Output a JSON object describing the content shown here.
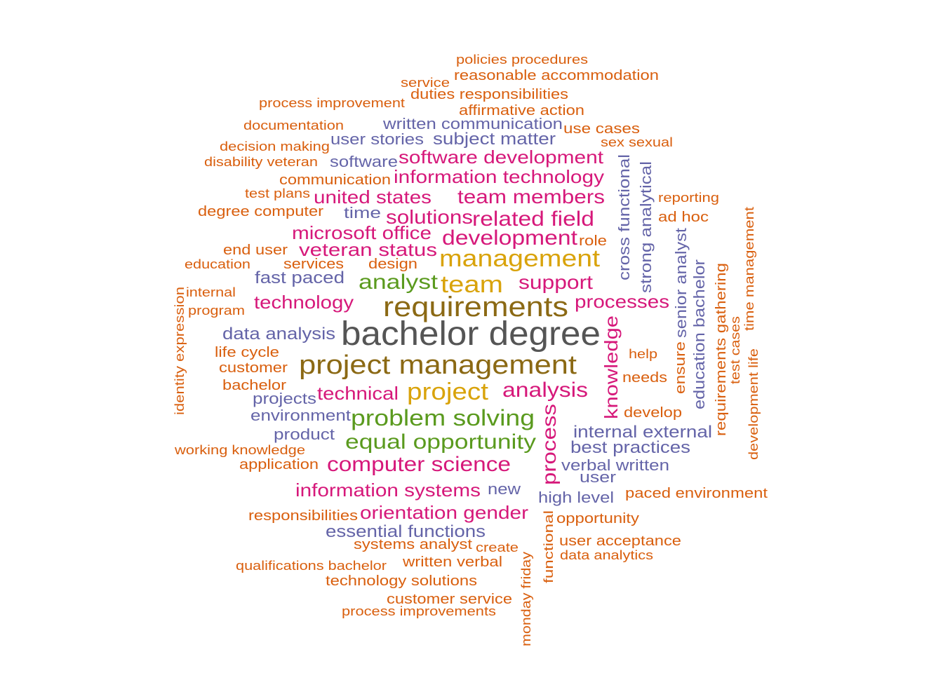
{
  "palette": {
    "dark_gray": "#555555",
    "brown": "#8B6914",
    "gold": "#D9A30B",
    "green": "#5A9A1E",
    "magenta": "#D6187A",
    "purple": "#6464A8",
    "orange": "#D95F0E"
  },
  "words": [
    {
      "text": "bachelor degree",
      "color": "dark_gray",
      "rank": 1
    },
    {
      "text": "requirements",
      "color": "brown",
      "rank": 2
    },
    {
      "text": "project management",
      "color": "brown",
      "rank": 3
    },
    {
      "text": "management",
      "color": "gold",
      "rank": 4
    },
    {
      "text": "team",
      "color": "gold",
      "rank": 5
    },
    {
      "text": "project",
      "color": "gold",
      "rank": 6
    },
    {
      "text": "analyst",
      "color": "green",
      "rank": 7
    },
    {
      "text": "problem solving",
      "color": "green",
      "rank": 8
    },
    {
      "text": "equal opportunity",
      "color": "green",
      "rank": 9
    },
    {
      "text": "development",
      "color": "magenta",
      "rank": 10
    },
    {
      "text": "related field",
      "color": "magenta",
      "rank": 11
    },
    {
      "text": "analysis",
      "color": "magenta",
      "rank": 12
    },
    {
      "text": "computer science",
      "color": "magenta",
      "rank": 13
    },
    {
      "text": "knowledge",
      "color": "magenta",
      "rank": 14
    },
    {
      "text": "process",
      "color": "magenta",
      "rank": 15
    },
    {
      "text": "support",
      "color": "magenta",
      "rank": 16
    },
    {
      "text": "processes",
      "color": "magenta",
      "rank": 17
    },
    {
      "text": "technology",
      "color": "magenta",
      "rank": 18
    },
    {
      "text": "technical",
      "color": "magenta",
      "rank": 19
    },
    {
      "text": "solutions",
      "color": "magenta",
      "rank": 20
    },
    {
      "text": "veteran status",
      "color": "magenta",
      "rank": 21
    },
    {
      "text": "microsoft office",
      "color": "magenta",
      "rank": 22
    },
    {
      "text": "team members",
      "color": "magenta",
      "rank": 23
    },
    {
      "text": "united states",
      "color": "magenta",
      "rank": 24
    },
    {
      "text": "information technology",
      "color": "magenta",
      "rank": 25
    },
    {
      "text": "software development",
      "color": "magenta",
      "rank": 26
    },
    {
      "text": "information systems",
      "color": "magenta",
      "rank": 27
    },
    {
      "text": "orientation gender",
      "color": "magenta",
      "rank": 28
    },
    {
      "text": "essential functions",
      "color": "purple",
      "rank": 29
    },
    {
      "text": "internal external",
      "color": "purple",
      "rank": 30
    },
    {
      "text": "best practices",
      "color": "purple",
      "rank": 31
    },
    {
      "text": "verbal written",
      "color": "purple",
      "rank": 32
    },
    {
      "text": "high level",
      "color": "purple",
      "rank": 33
    },
    {
      "text": "user",
      "color": "purple",
      "rank": 34
    },
    {
      "text": "new",
      "color": "purple",
      "rank": 35
    },
    {
      "text": "product",
      "color": "purple",
      "rank": 36
    },
    {
      "text": "environment",
      "color": "purple",
      "rank": 37
    },
    {
      "text": "projects",
      "color": "purple",
      "rank": 38
    },
    {
      "text": "data analysis",
      "color": "purple",
      "rank": 39
    },
    {
      "text": "fast paced",
      "color": "purple",
      "rank": 40
    },
    {
      "text": "time",
      "color": "purple",
      "rank": 41
    },
    {
      "text": "software",
      "color": "purple",
      "rank": 42
    },
    {
      "text": "user stories",
      "color": "purple",
      "rank": 43
    },
    {
      "text": "subject matter",
      "color": "purple",
      "rank": 44
    },
    {
      "text": "written communication",
      "color": "purple",
      "rank": 45
    },
    {
      "text": "cross functional",
      "color": "purple",
      "rank": 46
    },
    {
      "text": "strong analytical",
      "color": "purple",
      "rank": 47
    },
    {
      "text": "senior analyst",
      "color": "purple",
      "rank": 48
    },
    {
      "text": "education bachelor",
      "color": "purple",
      "rank": 49
    },
    {
      "text": "ensure",
      "color": "orange",
      "rank": 50
    },
    {
      "text": "requirements gathering",
      "color": "orange",
      "rank": 51
    },
    {
      "text": "test cases",
      "color": "orange",
      "rank": 52
    },
    {
      "text": "time management",
      "color": "orange",
      "rank": 53
    },
    {
      "text": "development life",
      "color": "orange",
      "rank": 54
    },
    {
      "text": "functional",
      "color": "orange",
      "rank": 55
    },
    {
      "text": "monday friday",
      "color": "orange",
      "rank": 56
    },
    {
      "text": "identity expression",
      "color": "orange",
      "rank": 57
    },
    {
      "text": "policies procedures",
      "color": "orange",
      "rank": 58
    },
    {
      "text": "reasonable accommodation",
      "color": "orange",
      "rank": 59
    },
    {
      "text": "service",
      "color": "orange",
      "rank": 60
    },
    {
      "text": "duties responsibilities",
      "color": "orange",
      "rank": 61
    },
    {
      "text": "process improvement",
      "color": "orange",
      "rank": 62
    },
    {
      "text": "affirmative action",
      "color": "orange",
      "rank": 63
    },
    {
      "text": "documentation",
      "color": "orange",
      "rank": 64
    },
    {
      "text": "use cases",
      "color": "orange",
      "rank": 65
    },
    {
      "text": "decision making",
      "color": "orange",
      "rank": 66
    },
    {
      "text": "sex sexual",
      "color": "orange",
      "rank": 67
    },
    {
      "text": "disability veteran",
      "color": "orange",
      "rank": 68
    },
    {
      "text": "communication",
      "color": "orange",
      "rank": 69
    },
    {
      "text": "test plans",
      "color": "orange",
      "rank": 70
    },
    {
      "text": "reporting",
      "color": "orange",
      "rank": 71
    },
    {
      "text": "degree computer",
      "color": "orange",
      "rank": 72
    },
    {
      "text": "ad hoc",
      "color": "orange",
      "rank": 73
    },
    {
      "text": "role",
      "color": "orange",
      "rank": 74
    },
    {
      "text": "end user",
      "color": "orange",
      "rank": 75
    },
    {
      "text": "education",
      "color": "orange",
      "rank": 76
    },
    {
      "text": "services",
      "color": "orange",
      "rank": 77
    },
    {
      "text": "design",
      "color": "orange",
      "rank": 78
    },
    {
      "text": "internal",
      "color": "orange",
      "rank": 79
    },
    {
      "text": "program",
      "color": "orange",
      "rank": 80
    },
    {
      "text": "life cycle",
      "color": "orange",
      "rank": 81
    },
    {
      "text": "customer",
      "color": "orange",
      "rank": 82
    },
    {
      "text": "bachelor",
      "color": "orange",
      "rank": 83
    },
    {
      "text": "help",
      "color": "orange",
      "rank": 84
    },
    {
      "text": "needs",
      "color": "orange",
      "rank": 85
    },
    {
      "text": "develop",
      "color": "orange",
      "rank": 86
    },
    {
      "text": "working knowledge",
      "color": "orange",
      "rank": 87
    },
    {
      "text": "application",
      "color": "orange",
      "rank": 88
    },
    {
      "text": "paced environment",
      "color": "orange",
      "rank": 89
    },
    {
      "text": "responsibilities",
      "color": "orange",
      "rank": 90
    },
    {
      "text": "opportunity",
      "color": "orange",
      "rank": 91
    },
    {
      "text": "user acceptance",
      "color": "orange",
      "rank": 92
    },
    {
      "text": "data analytics",
      "color": "orange",
      "rank": 93
    },
    {
      "text": "systems analyst",
      "color": "orange",
      "rank": 94
    },
    {
      "text": "create",
      "color": "orange",
      "rank": 95
    },
    {
      "text": "written verbal",
      "color": "orange",
      "rank": 96
    },
    {
      "text": "qualifications bachelor",
      "color": "orange",
      "rank": 97
    },
    {
      "text": "technology solutions",
      "color": "orange",
      "rank": 98
    },
    {
      "text": "customer service",
      "color": "orange",
      "rank": 99
    },
    {
      "text": "process improvements",
      "color": "orange",
      "rank": 100
    }
  ]
}
